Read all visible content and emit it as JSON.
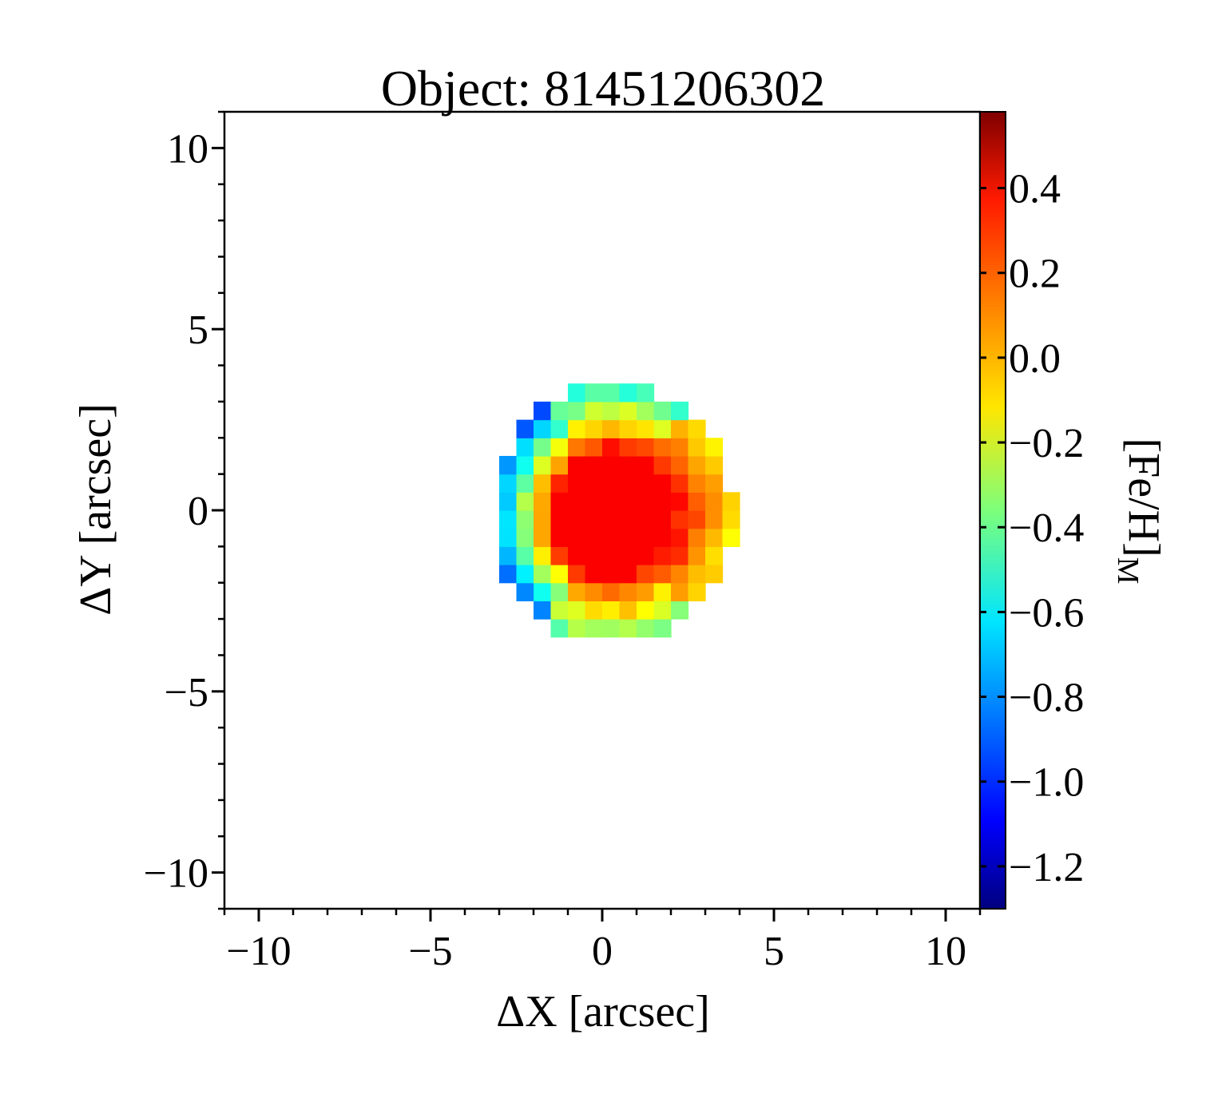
{
  "chart_data": {
    "type": "heatmap",
    "title": "Object: 81451206302",
    "xlabel": "ΔX [arcsec]",
    "ylabel": "ΔY [arcsec]",
    "xlim": [
      -11,
      11
    ],
    "ylim": [
      -11,
      11
    ],
    "x_ticks": [
      -10,
      -5,
      0,
      5,
      10
    ],
    "x_tick_labels": [
      "−10",
      "−5",
      "0",
      "5",
      "10"
    ],
    "y_ticks": [
      10,
      5,
      0,
      -5,
      -10
    ],
    "y_tick_labels": [
      "10",
      "5",
      "0",
      "−5",
      "−10"
    ],
    "colorbar": {
      "label": "[Fe/H]",
      "label_subscript": "M",
      "colormap": "jet",
      "range": [
        -1.3,
        0.58
      ],
      "ticks": [
        0.4,
        0.2,
        0.0,
        -0.2,
        -0.4,
        -0.6,
        -0.8,
        -1.0,
        -1.2
      ],
      "tick_labels": [
        "0.4",
        "0.2",
        "0.0",
        "−0.2",
        "−0.4",
        "−0.6",
        "−0.8",
        "−1.0",
        "−1.2"
      ]
    },
    "map": {
      "pixel_size": 0.5,
      "center": [
        0.3,
        -0.1
      ],
      "outer_radius": 3.55,
      "core_radius": 1.75,
      "core_value": 0.35,
      "edge_value": -0.55,
      "west_value": -0.95,
      "south_value": -0.4,
      "east_value": -0.1
    }
  },
  "colors": {
    "background": "#ffffff",
    "axis": "#000000"
  }
}
